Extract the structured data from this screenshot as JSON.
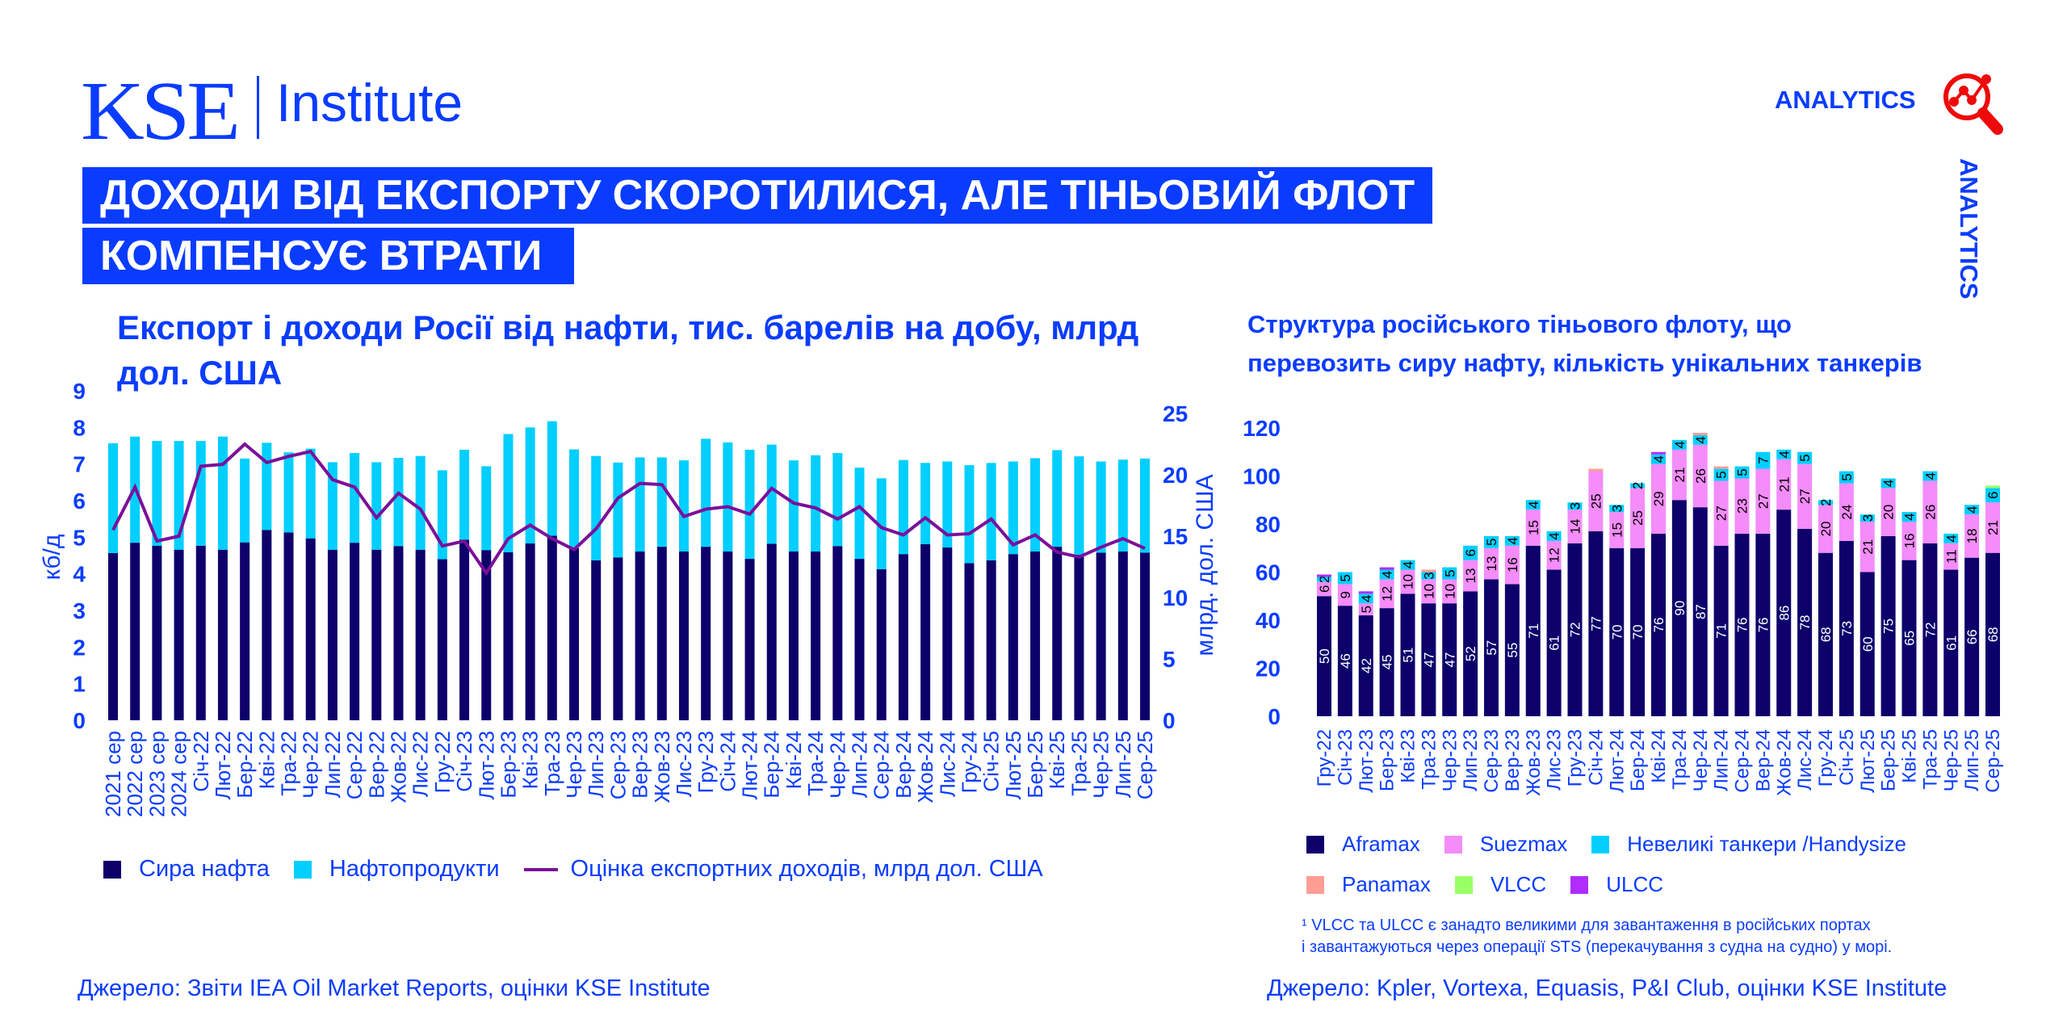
{
  "header": {
    "logo_text": "KSE",
    "logo_institute": "Institute",
    "analytics_label": "ANALYTICS",
    "analytics_vertical": "ANALYTICS",
    "title_line1": "ДОХОДИ ВІД ЕКСПОРТУ СКОРОТИЛИСЯ, АЛЕ ТІНЬОВИЙ ФЛОТ",
    "title_line2": "КОМПЕНСУЄ ВТРАТИ"
  },
  "colors": {
    "brand_blue": "#0a3cff",
    "accent_red": "#ee0a0a"
  },
  "chart_data": [
    {
      "type": "bar+line",
      "title": "Експорт і доходи Росії від нафти, тис. барелів на добу, млрд дол. США",
      "ylabel": "кб/д",
      "ylabel_right": "млрд. дол. США",
      "ylim": [
        0,
        9
      ],
      "yticks": [
        "0",
        "1",
        "2",
        "3",
        "4",
        "5",
        "6",
        "7",
        "8",
        "9"
      ],
      "ylim_right": [
        0,
        25
      ],
      "yticks_right": [
        "0",
        "5",
        "10",
        "15",
        "20",
        "25"
      ],
      "grid": false,
      "legend_position": "bottom",
      "categories": [
        "2021 сер",
        "2022 сер",
        "2023 сер",
        "2024 сер",
        "Січ-22",
        "Лют-22",
        "Бер-22",
        "Кві-22",
        "Тра-22",
        "Чер-22",
        "Лип-22",
        "Сер-22",
        "Вер-22",
        "Жов-22",
        "Лис-22",
        "Гру-22",
        "Січ-23",
        "Лют-23",
        "Бер-23",
        "Кві-23",
        "Тра-23",
        "Чер-23",
        "Лип-23",
        "Сер-23",
        "Вер-23",
        "Жов-23",
        "Лис-23",
        "Гру-23",
        "Січ-24",
        "Лют-24",
        "Бер-24",
        "Кві-24",
        "Тра-24",
        "Чер-24",
        "Лип-24",
        "Сер-24",
        "Вер-24",
        "Жов-24",
        "Лис-24",
        "Гру-24",
        "Січ-25",
        "Лют-25",
        "Бер-25",
        "Кві-25",
        "Тра-25",
        "Чер-25",
        "Лип-25",
        "Сер-25"
      ],
      "series": [
        {
          "name": "Сира нафта",
          "kind": "bar",
          "color": "#0d006b",
          "values": [
            4.57,
            4.85,
            4.77,
            4.66,
            4.77,
            4.66,
            4.86,
            5.2,
            5.13,
            4.97,
            4.66,
            4.85,
            4.66,
            4.76,
            4.66,
            4.4,
            4.93,
            4.65,
            4.59,
            4.83,
            5.04,
            4.7,
            4.37,
            4.45,
            4.61,
            4.74,
            4.61,
            4.74,
            4.61,
            4.41,
            4.82,
            4.61,
            4.61,
            4.76,
            4.41,
            4.13,
            4.54,
            4.81,
            4.72,
            4.29,
            4.37,
            4.54,
            4.61,
            4.74,
            4.52,
            4.58,
            4.61,
            4.58
          ]
        },
        {
          "name": "Нафтопродукти",
          "kind": "bar",
          "color": "#00cfff",
          "values": [
            3.0,
            2.9,
            2.86,
            2.97,
            2.86,
            3.09,
            2.29,
            2.38,
            2.19,
            2.45,
            2.39,
            2.45,
            2.39,
            2.41,
            2.56,
            2.43,
            2.46,
            2.29,
            3.23,
            3.17,
            3.13,
            2.7,
            2.85,
            2.59,
            2.57,
            2.44,
            2.49,
            2.95,
            2.98,
            2.98,
            2.71,
            2.49,
            2.63,
            2.54,
            2.49,
            2.48,
            2.57,
            2.22,
            2.35,
            2.68,
            2.66,
            2.53,
            2.55,
            2.64,
            2.69,
            2.49,
            2.51,
            2.57
          ]
        },
        {
          "name": "Оцінка експортних доходів, млрд дол. США",
          "kind": "line",
          "axis": "right",
          "color": "#7b0f9a",
          "values": [
            15.5,
            19.0,
            14.6,
            15.0,
            20.7,
            20.85,
            22.5,
            21.0,
            21.5,
            21.9,
            19.6,
            19.0,
            16.5,
            18.5,
            17.2,
            14.2,
            14.6,
            12.0,
            14.8,
            15.9,
            14.8,
            13.9,
            15.6,
            18.1,
            19.3,
            19.2,
            16.6,
            17.2,
            17.4,
            16.8,
            18.9,
            17.7,
            17.3,
            16.4,
            17.4,
            15.7,
            15.1,
            16.5,
            15.1,
            15.2,
            16.4,
            14.3,
            15.1,
            13.7,
            13.3,
            14.1,
            14.8,
            14.0
          ]
        }
      ],
      "source": "Джерело: Звіти IEA Oil Market Reports, оцінки KSE Institute"
    },
    {
      "type": "bar",
      "stacked": true,
      "title_line1": "Структура російського тіньового флоту, що",
      "title_line2": "перевозить сиру нафту, кількість унікальних танкерів",
      "ylim": [
        0,
        120
      ],
      "yticks": [
        "0",
        "20",
        "40",
        "60",
        "80",
        "100",
        "120"
      ],
      "grid": false,
      "legend_position": "bottom",
      "categories": [
        "Гру-22",
        "Січ-23",
        "Лют-23",
        "Бер-23",
        "Кві-23",
        "Тра-23",
        "Чер-23",
        "Лип-23",
        "Сер-23",
        "Вер-23",
        "Жов-23",
        "Лис-23",
        "Гру-23",
        "Січ-24",
        "Лют-24",
        "Бер-24",
        "Кві-24",
        "Тра-24",
        "Чер-24",
        "Лип-24",
        "Сер-24",
        "Вер-24",
        "Жов-24",
        "Лис-24",
        "Гру-24",
        "Січ-25",
        "Лют-25",
        "Бер-25",
        "Кві-25",
        "Тра-25",
        "Чер-25",
        "Лип-25",
        "Сер-25"
      ],
      "series": [
        {
          "name": "Aframax",
          "color": "#0d006b",
          "label_color": "#ffffff",
          "values": [
            50,
            46,
            42,
            45,
            51,
            47,
            47,
            52,
            57,
            55,
            71,
            61,
            72,
            77,
            70,
            70,
            76,
            90,
            87,
            71,
            76,
            76,
            86,
            78,
            68,
            73,
            60,
            75,
            65,
            72,
            61,
            66,
            68
          ]
        },
        {
          "name": "Suezmax",
          "color": "#f48cf9",
          "label_color": "#000000",
          "values": [
            6,
            9,
            5,
            12,
            10,
            10,
            10,
            13,
            13,
            16,
            15,
            12,
            14,
            25,
            15,
            25,
            29,
            21,
            26,
            27,
            23,
            27,
            21,
            27,
            20,
            24,
            21,
            20,
            16,
            26,
            11,
            18,
            21
          ]
        },
        {
          "name": "Невеликі танкери /Handysize",
          "color": "#00cfff",
          "label_color": "#000000",
          "values": [
            2,
            5,
            4,
            4,
            4,
            3,
            5,
            6,
            5,
            4,
            4,
            4,
            3,
            0,
            3,
            2,
            4,
            4,
            4,
            5,
            5,
            7,
            4,
            5,
            2,
            5,
            3,
            4,
            4,
            4,
            4,
            4,
            6
          ]
        },
        {
          "name": "Panamax",
          "color": "#ff9d94",
          "values": [
            0,
            0,
            0,
            0,
            0,
            1,
            0,
            0,
            0,
            0,
            0,
            0,
            0,
            1,
            0,
            0,
            0,
            0,
            1,
            1,
            0,
            0,
            0,
            0,
            0,
            0,
            0,
            0,
            0,
            0,
            0,
            0,
            0
          ]
        },
        {
          "name": "VLCC",
          "color": "#99ff66",
          "values": [
            0,
            0,
            0,
            0,
            0,
            0,
            0,
            0,
            0,
            0,
            0,
            0,
            0,
            0,
            0,
            0,
            0,
            0,
            0,
            0,
            0,
            0,
            0,
            0,
            0,
            0,
            0,
            0,
            0,
            0,
            0,
            0,
            1
          ]
        },
        {
          "name": "ULCC",
          "color": "#b02cff",
          "values": [
            1,
            0,
            1,
            1,
            0,
            0,
            0,
            0,
            0,
            0,
            0,
            0,
            0,
            0,
            0,
            0,
            1,
            0,
            0,
            0,
            0,
            0,
            0,
            0,
            0,
            0,
            0,
            0,
            0,
            0,
            0,
            0,
            0
          ]
        }
      ],
      "footnote_line1": "¹ VLCC та ULCC є занадто великими для завантаження в російських портах",
      "footnote_line2": "і завантажуються через операції STS (перекачування з судна на судно) у морі.",
      "source": "Джерело: Kpler, Vortexa, Equasis, P&I Club, оцінки KSE Institute"
    }
  ]
}
